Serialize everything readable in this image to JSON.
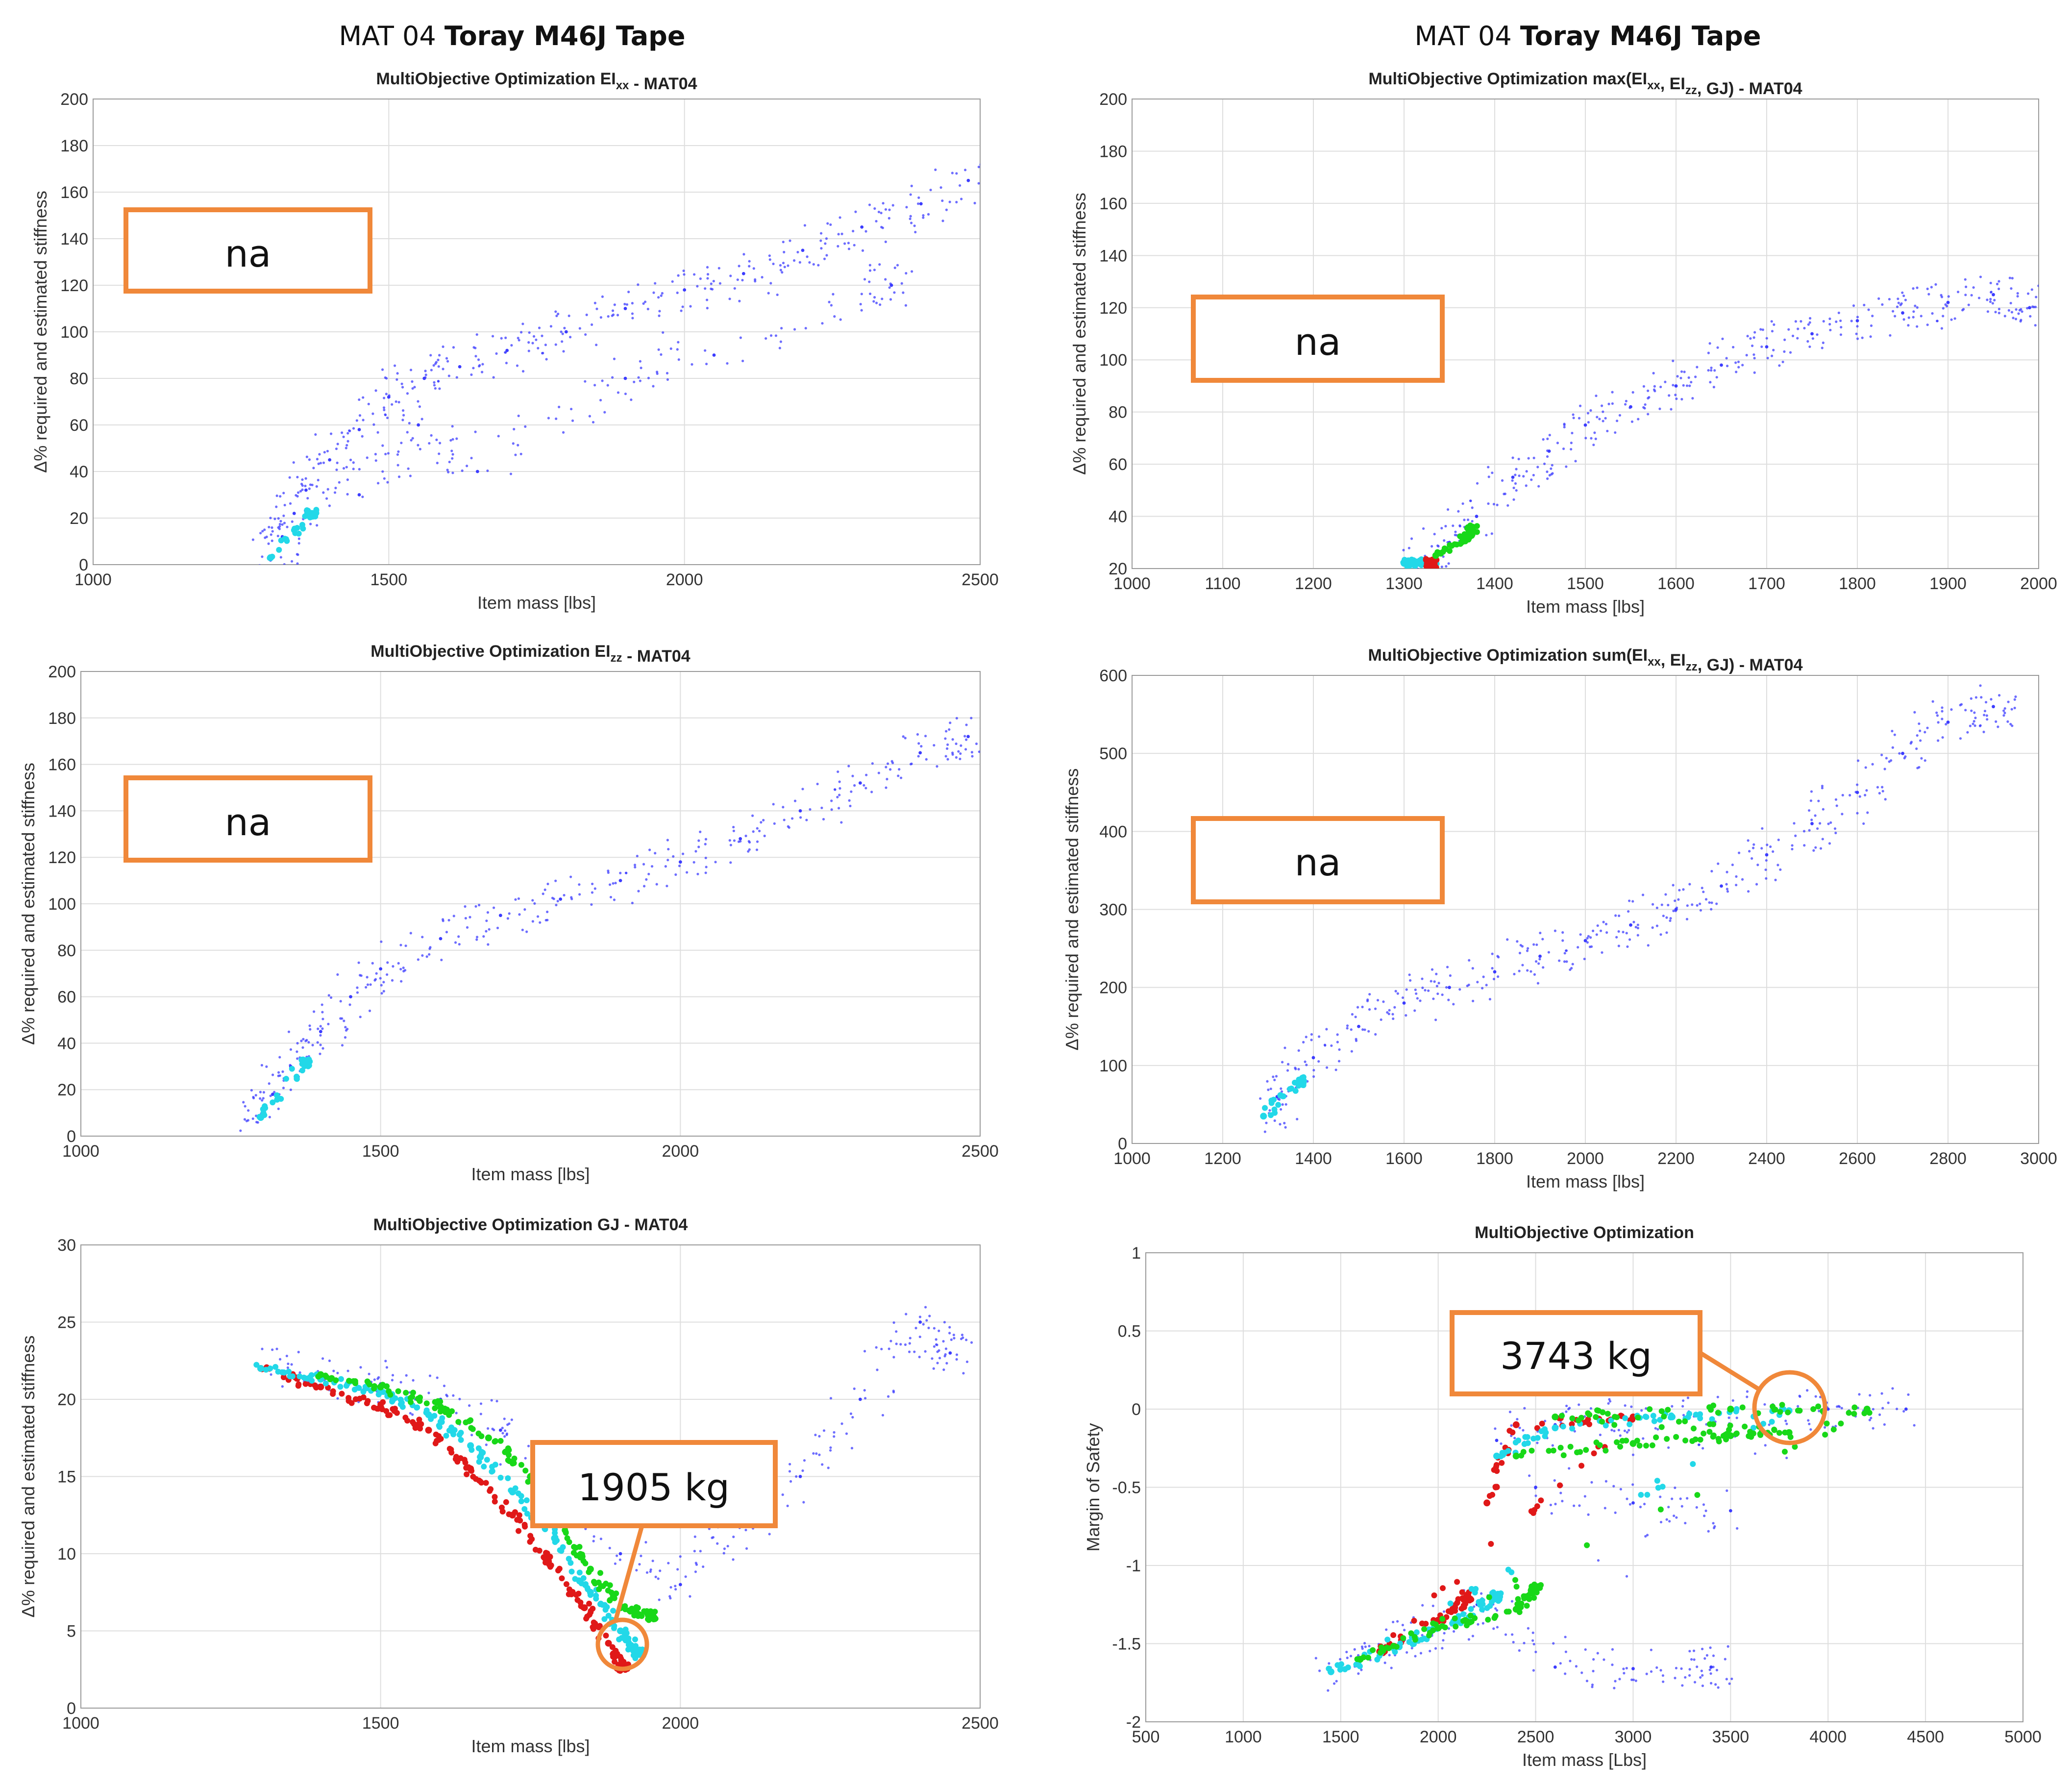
{
  "header": {
    "left": {
      "prefix": "MAT 04 ",
      "bold": "Toray M46J Tape"
    },
    "right": {
      "prefix": "MAT 04 ",
      "bold": "Toray M46J Tape"
    }
  },
  "colors": {
    "blue": "#3c3cff",
    "red": "#e01818",
    "green": "#18d818",
    "cyan": "#22d8e8",
    "orange": "#f0883a",
    "grid": "#dedede",
    "axis": "#9a9a9a"
  },
  "chart_data": [
    {
      "id": "p1",
      "type": "scatter",
      "title": "MultiObjective Optimization EI_xx - MAT04",
      "xlabel": "Item mass [lbs]",
      "ylabel": "Δ% required and estimated stiffness",
      "xlim": [
        1000,
        2500
      ],
      "ylim": [
        0,
        200
      ],
      "xticks": [
        "1000",
        "1500",
        "2000",
        "2500"
      ],
      "yticks": [
        "0",
        "20",
        "40",
        "60",
        "80",
        "100",
        "120",
        "140",
        "160",
        "180",
        "200"
      ],
      "series": [
        {
          "name": "blue",
          "color": "blue",
          "points": [
            [
              1300,
              2
            ],
            [
              1320,
              12
            ],
            [
              1340,
              22
            ],
            [
              1360,
              32
            ],
            [
              1400,
              45
            ],
            [
              1450,
              58
            ],
            [
              1500,
              72
            ],
            [
              1560,
              80
            ],
            [
              1620,
              85
            ],
            [
              1700,
              92
            ],
            [
              1800,
              100
            ],
            [
              1900,
              110
            ],
            [
              2000,
              118
            ],
            [
              2100,
              125
            ],
            [
              2200,
              135
            ],
            [
              2300,
              145
            ],
            [
              2400,
              155
            ],
            [
              2480,
              165
            ],
            [
              1450,
              30
            ],
            [
              1550,
              60
            ],
            [
              1650,
              40
            ],
            [
              1900,
              80
            ],
            [
              2050,
              90
            ],
            [
              2350,
              120
            ]
          ]
        },
        {
          "name": "cyan",
          "color": "cyan",
          "points": [
            [
              1300,
              3
            ],
            [
              1370,
              22
            ]
          ]
        }
      ],
      "annotation": {
        "text": "na"
      }
    },
    {
      "id": "p2",
      "type": "scatter",
      "title": "MultiObjective Optimization max(EI_xx, EI_zz, GJ) - MAT04",
      "xlabel": "Item mass [lbs]",
      "ylabel": "Δ% required and estimated stiffness",
      "xlim": [
        1000,
        2000
      ],
      "ylim": [
        20,
        200
      ],
      "xticks": [
        "1000",
        "1100",
        "1200",
        "1300",
        "1400",
        "1500",
        "1600",
        "1700",
        "1800",
        "1900",
        "2000"
      ],
      "yticks": [
        "20",
        "40",
        "60",
        "80",
        "100",
        "120",
        "140",
        "160",
        "180",
        "200"
      ],
      "series": [
        {
          "name": "blue",
          "color": "blue",
          "points": [
            [
              1320,
              22
            ],
            [
              1350,
              30
            ],
            [
              1380,
              40
            ],
            [
              1420,
              55
            ],
            [
              1460,
              65
            ],
            [
              1500,
              75
            ],
            [
              1550,
              82
            ],
            [
              1600,
              90
            ],
            [
              1650,
              98
            ],
            [
              1700,
              105
            ],
            [
              1750,
              110
            ],
            [
              1800,
              115
            ],
            [
              1850,
              118
            ],
            [
              1900,
              122
            ],
            [
              1950,
              125
            ],
            [
              1990,
              120
            ]
          ]
        },
        {
          "name": "cyan",
          "color": "cyan",
          "points": [
            [
              1300,
              22
            ],
            [
              1315,
              22
            ],
            [
              1330,
              22
            ]
          ]
        },
        {
          "name": "red",
          "color": "red",
          "points": [
            [
              1330,
              22
            ]
          ]
        },
        {
          "name": "green",
          "color": "green",
          "points": [
            [
              1335,
              25
            ],
            [
              1370,
              32
            ],
            [
              1375,
              35
            ]
          ]
        }
      ],
      "annotation": {
        "text": "na"
      }
    },
    {
      "id": "p3",
      "type": "scatter",
      "title": "MultiObjective Optimization EI_zz - MAT04",
      "xlabel": "Item mass [lbs]",
      "ylabel": "Δ% required and estimated stiffness",
      "xlim": [
        1000,
        2500
      ],
      "ylim": [
        0,
        200
      ],
      "xticks": [
        "1000",
        "1500",
        "2000",
        "2500"
      ],
      "yticks": [
        "0",
        "20",
        "40",
        "60",
        "80",
        "100",
        "120",
        "140",
        "160",
        "180",
        "200"
      ],
      "series": [
        {
          "name": "blue",
          "color": "blue",
          "points": [
            [
              1300,
              8
            ],
            [
              1320,
              18
            ],
            [
              1350,
              30
            ],
            [
              1400,
              45
            ],
            [
              1450,
              60
            ],
            [
              1500,
              72
            ],
            [
              1600,
              85
            ],
            [
              1700,
              95
            ],
            [
              1800,
              102
            ],
            [
              1900,
              110
            ],
            [
              2000,
              118
            ],
            [
              2100,
              128
            ],
            [
              2200,
              140
            ],
            [
              2300,
              152
            ],
            [
              2400,
              165
            ],
            [
              2480,
              172
            ]
          ]
        },
        {
          "name": "cyan",
          "color": "cyan",
          "points": [
            [
              1300,
              8
            ],
            [
              1375,
              32
            ]
          ]
        }
      ],
      "annotation": {
        "text": "na"
      }
    },
    {
      "id": "p4",
      "type": "scatter",
      "title": "MultiObjective Optimization sum(EI_xx, EI_zz, GJ) - MAT04",
      "xlabel": "Item mass [lbs]",
      "ylabel": "Δ% required and estimated stiffness",
      "xlim": [
        1000,
        3000
      ],
      "ylim": [
        0,
        600
      ],
      "xticks": [
        "1000",
        "1200",
        "1400",
        "1600",
        "1800",
        "2000",
        "2200",
        "2400",
        "2600",
        "2800",
        "3000"
      ],
      "yticks": [
        "0",
        "100",
        "200",
        "300",
        "400",
        "500",
        "600"
      ],
      "series": [
        {
          "name": "blue",
          "color": "blue",
          "points": [
            [
              1290,
              35
            ],
            [
              1320,
              60
            ],
            [
              1400,
              110
            ],
            [
              1500,
              150
            ],
            [
              1600,
              180
            ],
            [
              1700,
              200
            ],
            [
              1800,
              220
            ],
            [
              1900,
              240
            ],
            [
              2000,
              260
            ],
            [
              2100,
              280
            ],
            [
              2200,
              300
            ],
            [
              2300,
              330
            ],
            [
              2400,
              370
            ],
            [
              2500,
              410
            ],
            [
              2600,
              450
            ],
            [
              2700,
              500
            ],
            [
              2800,
              540
            ],
            [
              2900,
              560
            ]
          ]
        },
        {
          "name": "cyan",
          "color": "cyan",
          "points": [
            [
              1290,
              35
            ],
            [
              1370,
              80
            ]
          ]
        }
      ],
      "annotation": {
        "text": "na"
      }
    },
    {
      "id": "p5",
      "type": "scatter",
      "title": "MultiObjective Optimization GJ - MAT04",
      "xlabel": "Item mass [lbs]",
      "ylabel": "Δ% required and estimated stiffness",
      "xlim": [
        1000,
        2500
      ],
      "ylim": [
        0,
        30
      ],
      "xticks": [
        "1000",
        "1500",
        "2000",
        "2500"
      ],
      "yticks": [
        "0",
        "5",
        "10",
        "15",
        "20",
        "25",
        "30"
      ],
      "series": [
        {
          "name": "blue",
          "color": "blue",
          "points": [
            [
              1300,
              22
            ],
            [
              1400,
              21.5
            ],
            [
              1500,
              21
            ],
            [
              1600,
              20
            ],
            [
              1700,
              18
            ],
            [
              1800,
              15
            ],
            [
              1900,
              10
            ],
            [
              2000,
              8
            ],
            [
              2100,
              12
            ],
            [
              2200,
              15
            ],
            [
              2300,
              20
            ],
            [
              2400,
              25
            ],
            [
              2450,
              23
            ]
          ]
        },
        {
          "name": "red",
          "color": "red",
          "points": [
            [
              1300,
              22
            ],
            [
              1400,
              20.8
            ],
            [
              1500,
              19.5
            ],
            [
              1580,
              18
            ],
            [
              1650,
              15.5
            ],
            [
              1720,
              12.5
            ],
            [
              1780,
              9.5
            ],
            [
              1840,
              6.5
            ],
            [
              1880,
              4.2
            ],
            [
              1905,
              2.7
            ]
          ]
        },
        {
          "name": "cyan",
          "color": "cyan",
          "points": [
            [
              1300,
              22
            ],
            [
              1400,
              21.3
            ],
            [
              1500,
              20.5
            ],
            [
              1580,
              19
            ],
            [
              1650,
              17
            ],
            [
              1720,
              14
            ],
            [
              1790,
              11
            ],
            [
              1850,
              7.5
            ],
            [
              1900,
              5
            ],
            [
              1930,
              3.5
            ]
          ]
        },
        {
          "name": "green",
          "color": "green",
          "points": [
            [
              1400,
              21.6
            ],
            [
              1500,
              20.8
            ],
            [
              1600,
              19.5
            ],
            [
              1680,
              17.5
            ],
            [
              1750,
              15
            ],
            [
              1800,
              12
            ],
            [
              1850,
              9
            ],
            [
              1900,
              6.5
            ],
            [
              1950,
              6
            ]
          ]
        }
      ],
      "annotation": {
        "text": "1905 kg"
      }
    },
    {
      "id": "p6",
      "type": "scatter",
      "title": "MultiObjective Optimization",
      "xlabel": "Item mass [Lbs]",
      "ylabel": "Margin of Safety",
      "xlim": [
        500,
        5000
      ],
      "ylim": [
        -2,
        1
      ],
      "xticks": [
        "500",
        "1000",
        "1500",
        "2000",
        "2500",
        "3000",
        "3500",
        "4000",
        "4500",
        "5000"
      ],
      "yticks": [
        "-2",
        "-1.5",
        "-1",
        "-0.5",
        "0",
        "0.5",
        "1"
      ],
      "series": [
        {
          "name": "blue",
          "color": "blue",
          "points": [
            [
              2300,
              -0.2
            ],
            [
              2600,
              -0.1
            ],
            [
              3000,
              -0.05
            ],
            [
              3500,
              -0.02
            ],
            [
              4000,
              0
            ],
            [
              4400,
              0
            ],
            [
              2500,
              -0.5
            ],
            [
              3000,
              -0.6
            ],
            [
              3500,
              -0.65
            ],
            [
              1450,
              -1.68
            ],
            [
              1700,
              -1.55
            ],
            [
              2000,
              -1.4
            ],
            [
              2200,
              -1.25
            ],
            [
              2600,
              -1.65
            ],
            [
              3000,
              -1.66
            ],
            [
              3400,
              -1.65
            ]
          ]
        },
        {
          "name": "red",
          "color": "red",
          "points": [
            [
              2250,
              -0.6
            ],
            [
              2400,
              -0.1
            ],
            [
              3000,
              -0.05
            ],
            [
              1700,
              -1.55
            ],
            [
              2000,
              -1.35
            ],
            [
              2150,
              -1.2
            ]
          ]
        },
        {
          "name": "cyan",
          "color": "cyan",
          "points": [
            [
              2300,
              -0.3
            ],
            [
              2600,
              -0.12
            ],
            [
              3200,
              -0.05
            ],
            [
              3800,
              -0.01
            ],
            [
              1450,
              -1.68
            ],
            [
              1800,
              -1.52
            ],
            [
              2100,
              -1.35
            ],
            [
              2300,
              -1.2
            ]
          ]
        },
        {
          "name": "green",
          "color": "green",
          "points": [
            [
              2400,
              -0.3
            ],
            [
              3000,
              -0.22
            ],
            [
              3500,
              -0.17
            ],
            [
              3800,
              -0.15
            ],
            [
              2600,
              -0.05
            ],
            [
              3500,
              0
            ],
            [
              4200,
              0
            ],
            [
              1600,
              -1.6
            ],
            [
              2000,
              -1.4
            ],
            [
              2400,
              -1.28
            ],
            [
              2500,
              -1.15
            ]
          ]
        }
      ],
      "annotation": {
        "text": "3743 kg"
      }
    }
  ]
}
